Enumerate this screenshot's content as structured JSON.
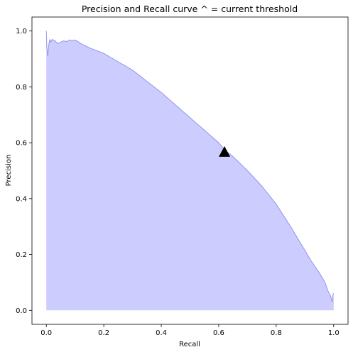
{
  "chart_data": {
    "type": "area",
    "title": "Precision and Recall curve ^ = current threshold",
    "xlabel": "Recall",
    "ylabel": "Precision",
    "xlim": [
      -0.05,
      1.05
    ],
    "ylim": [
      -0.05,
      1.05
    ],
    "xticks": [
      0.0,
      0.2,
      0.4,
      0.6,
      0.8,
      1.0
    ],
    "yticks": [
      0.0,
      0.2,
      0.4,
      0.6,
      0.8,
      1.0
    ],
    "xtick_labels": [
      "0.0",
      "0.2",
      "0.4",
      "0.6",
      "0.8",
      "1.0"
    ],
    "ytick_labels": [
      "0.0",
      "0.2",
      "0.4",
      "0.6",
      "0.8",
      "1.0"
    ],
    "grid": false,
    "colors": {
      "fill": "#ccccff",
      "line": "#8080ee",
      "marker": "#000000"
    },
    "series": [
      {
        "x": [
          0.0,
          0.0,
          0.002,
          0.005,
          0.008,
          0.012,
          0.015,
          0.02,
          0.03,
          0.04,
          0.05,
          0.06,
          0.07,
          0.08,
          0.09,
          0.1,
          0.11,
          0.12,
          0.15,
          0.2,
          0.25,
          0.3,
          0.35,
          0.4,
          0.45,
          0.5,
          0.55,
          0.6,
          0.62,
          0.65,
          0.7,
          0.75,
          0.8,
          0.85,
          0.9,
          0.92,
          0.95,
          0.97,
          0.98,
          0.99,
          0.995,
          0.998,
          1.0,
          1.0
        ],
        "y": [
          0.0,
          1.0,
          0.94,
          0.91,
          0.95,
          0.97,
          0.96,
          0.97,
          0.965,
          0.955,
          0.96,
          0.965,
          0.962,
          0.968,
          0.966,
          0.968,
          0.962,
          0.955,
          0.94,
          0.92,
          0.89,
          0.86,
          0.82,
          0.78,
          0.735,
          0.69,
          0.645,
          0.6,
          0.575,
          0.55,
          0.5,
          0.445,
          0.38,
          0.3,
          0.215,
          0.18,
          0.135,
          0.1,
          0.07,
          0.05,
          0.03,
          0.06,
          0.06,
          0.0
        ]
      }
    ],
    "marker": {
      "x": 0.62,
      "y": 0.565,
      "symbol": "triangle-up"
    }
  }
}
